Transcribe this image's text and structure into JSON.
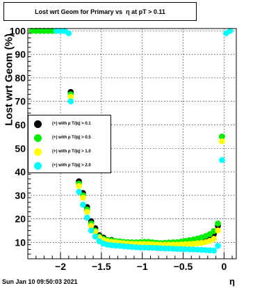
{
  "chart_data": {
    "type": "scatter",
    "title": "Lost wrt Geom for Primary vs  η at pT > 0.11",
    "xlabel": "η",
    "ylabel": "Lost wrt Geom (%)",
    "xlim": [
      -2.4,
      0.15
    ],
    "ylim": [
      3,
      101
    ],
    "x_ticks": [
      -2,
      -1.5,
      -1,
      -0.5,
      0
    ],
    "x_tick_labels": [
      "−2",
      "−1.5",
      "−1",
      "−0.5",
      "0"
    ],
    "y_ticks": [
      10,
      20,
      30,
      40,
      50,
      60,
      70,
      80,
      90,
      100
    ],
    "y_tick_labels": [
      "10",
      "20",
      "30",
      "40",
      "50",
      "60",
      "70",
      "80",
      "90",
      "100"
    ],
    "grid": true,
    "legend_position": "left-middle",
    "series": [
      {
        "name": "(+) with p T/|q| > 0.1",
        "color": "#000000",
        "points": [
          [
            -2.35,
            100
          ],
          [
            -2.3,
            100
          ],
          [
            -2.25,
            100
          ],
          [
            -2.2,
            100
          ],
          [
            -2.15,
            100
          ],
          [
            -2.1,
            100
          ],
          [
            -2.05,
            100
          ],
          [
            -2.0,
            100
          ],
          [
            -1.95,
            100
          ],
          [
            -1.875,
            74
          ],
          [
            -1.825,
            58
          ],
          [
            -1.775,
            36
          ],
          [
            -1.725,
            31
          ],
          [
            -1.675,
            25
          ],
          [
            -1.625,
            19
          ],
          [
            -1.575,
            16
          ],
          [
            -1.525,
            13
          ],
          [
            -1.475,
            12
          ],
          [
            -1.425,
            11
          ],
          [
            -1.375,
            11
          ],
          [
            -1.325,
            10.5
          ],
          [
            -1.275,
            10.3
          ],
          [
            -1.225,
            10
          ],
          [
            -1.175,
            10
          ],
          [
            -1.125,
            9.8
          ],
          [
            -1.075,
            9.7
          ],
          [
            -1.025,
            9.7
          ],
          [
            -0.975,
            9.8
          ],
          [
            -0.925,
            9.9
          ],
          [
            -0.875,
            9.7
          ],
          [
            -0.825,
            9.6
          ],
          [
            -0.775,
            9.5
          ],
          [
            -0.725,
            9.5
          ],
          [
            -0.675,
            9.6
          ],
          [
            -0.625,
            9.7
          ],
          [
            -0.575,
            9.7
          ],
          [
            -0.525,
            9.8
          ],
          [
            -0.475,
            10
          ],
          [
            -0.425,
            10.3
          ],
          [
            -0.375,
            10.6
          ],
          [
            -0.325,
            11
          ],
          [
            -0.275,
            11.3
          ],
          [
            -0.225,
            11.8
          ],
          [
            -0.175,
            12.5
          ],
          [
            -0.125,
            13.5
          ],
          [
            -0.075,
            17
          ],
          [
            -0.025,
            55
          ]
        ]
      },
      {
        "name": "(+) with p T/|q| > 0.5",
        "color": "#00ee00",
        "points": [
          [
            -2.35,
            100
          ],
          [
            -2.3,
            100
          ],
          [
            -2.25,
            100
          ],
          [
            -2.2,
            100
          ],
          [
            -2.15,
            100
          ],
          [
            -2.1,
            100
          ],
          [
            -2.05,
            100
          ],
          [
            -1.875,
            73
          ],
          [
            -1.825,
            57
          ],
          [
            -1.775,
            35
          ],
          [
            -1.725,
            30
          ],
          [
            -1.675,
            24
          ],
          [
            -1.625,
            18
          ],
          [
            -1.575,
            15
          ],
          [
            -1.525,
            12.5
          ],
          [
            -1.475,
            11.5
          ],
          [
            -1.425,
            11
          ],
          [
            -1.375,
            10.8
          ],
          [
            -1.325,
            10.5
          ],
          [
            -1.275,
            10.4
          ],
          [
            -1.225,
            10.2
          ],
          [
            -1.175,
            10.1
          ],
          [
            -1.125,
            10
          ],
          [
            -1.075,
            10
          ],
          [
            -1.025,
            10.1
          ],
          [
            -0.975,
            10.2
          ],
          [
            -0.925,
            10.2
          ],
          [
            -0.875,
            10
          ],
          [
            -0.825,
            9.8
          ],
          [
            -0.775,
            9.7
          ],
          [
            -0.725,
            9.8
          ],
          [
            -0.675,
            9.9
          ],
          [
            -0.625,
            10
          ],
          [
            -0.575,
            10.1
          ],
          [
            -0.525,
            10.3
          ],
          [
            -0.475,
            10.6
          ],
          [
            -0.425,
            10.9
          ],
          [
            -0.375,
            11.2
          ],
          [
            -0.325,
            11.6
          ],
          [
            -0.275,
            12.1
          ],
          [
            -0.225,
            12.7
          ],
          [
            -0.175,
            13.5
          ],
          [
            -0.125,
            14.8
          ],
          [
            -0.075,
            18
          ],
          [
            -0.025,
            55
          ]
        ]
      },
      {
        "name": "(+) with p T/|q| > 1.0",
        "color": "#ffff00",
        "points": [
          [
            -1.875,
            72
          ],
          [
            -1.825,
            56
          ],
          [
            -1.775,
            34
          ],
          [
            -1.725,
            29
          ],
          [
            -1.675,
            23
          ],
          [
            -1.625,
            17
          ],
          [
            -1.575,
            14.5
          ],
          [
            -1.525,
            12
          ],
          [
            -1.475,
            11
          ],
          [
            -1.425,
            10.5
          ],
          [
            -1.375,
            10.2
          ],
          [
            -1.325,
            10
          ],
          [
            -1.275,
            9.8
          ],
          [
            -1.225,
            9.6
          ],
          [
            -1.175,
            9.5
          ],
          [
            -1.125,
            9.4
          ],
          [
            -1.075,
            9.3
          ],
          [
            -1.025,
            9.3
          ],
          [
            -0.975,
            9.3
          ],
          [
            -0.925,
            9.3
          ],
          [
            -0.875,
            9.2
          ],
          [
            -0.825,
            9.1
          ],
          [
            -0.775,
            9
          ],
          [
            -0.725,
            9
          ],
          [
            -0.675,
            9
          ],
          [
            -0.625,
            9
          ],
          [
            -0.575,
            9
          ],
          [
            -0.525,
            9.1
          ],
          [
            -0.475,
            9.2
          ],
          [
            -0.425,
            9.3
          ],
          [
            -0.375,
            9.4
          ],
          [
            -0.325,
            9.6
          ],
          [
            -0.275,
            9.8
          ],
          [
            -0.225,
            10.1
          ],
          [
            -0.175,
            10.6
          ],
          [
            -0.125,
            11.5
          ],
          [
            -0.075,
            15
          ],
          [
            -0.025,
            53
          ]
        ]
      },
      {
        "name": "(+) with p T/|q| > 2.0",
        "color": "#00ffff",
        "points": [
          [
            -2.05,
            100
          ],
          [
            -2.0,
            100
          ],
          [
            -1.95,
            100
          ],
          [
            -1.9,
            99
          ],
          [
            -1.875,
            70
          ],
          [
            -1.825,
            55
          ],
          [
            -1.775,
            31.5
          ],
          [
            -1.725,
            26
          ],
          [
            -1.675,
            20.5
          ],
          [
            -1.625,
            15
          ],
          [
            -1.575,
            12.5
          ],
          [
            -1.525,
            10.5
          ],
          [
            -1.475,
            9.5
          ],
          [
            -1.425,
            9
          ],
          [
            -1.375,
            8.8
          ],
          [
            -1.325,
            8.6
          ],
          [
            -1.275,
            8.5
          ],
          [
            -1.225,
            8.3
          ],
          [
            -1.175,
            8.2
          ],
          [
            -1.125,
            8
          ],
          [
            -1.075,
            7.9
          ],
          [
            -1.025,
            7.8
          ],
          [
            -0.975,
            7.8
          ],
          [
            -0.925,
            7.7
          ],
          [
            -0.875,
            7.7
          ],
          [
            -0.825,
            7.6
          ],
          [
            -0.775,
            7.5
          ],
          [
            -0.725,
            7.4
          ],
          [
            -0.675,
            7.4
          ],
          [
            -0.625,
            7.3
          ],
          [
            -0.575,
            7.2
          ],
          [
            -0.525,
            7.2
          ],
          [
            -0.475,
            7.1
          ],
          [
            -0.425,
            7
          ],
          [
            -0.375,
            7
          ],
          [
            -0.325,
            6.9
          ],
          [
            -0.275,
            6.8
          ],
          [
            -0.225,
            6.7
          ],
          [
            -0.175,
            6.6
          ],
          [
            -0.125,
            6.5
          ],
          [
            -0.075,
            8.5
          ],
          [
            -0.025,
            45
          ],
          [
            0.025,
            99
          ],
          [
            0.075,
            100
          ]
        ]
      }
    ]
  },
  "footer": {
    "timestamp": "Sun Jan 10 09:50:03 2021"
  }
}
